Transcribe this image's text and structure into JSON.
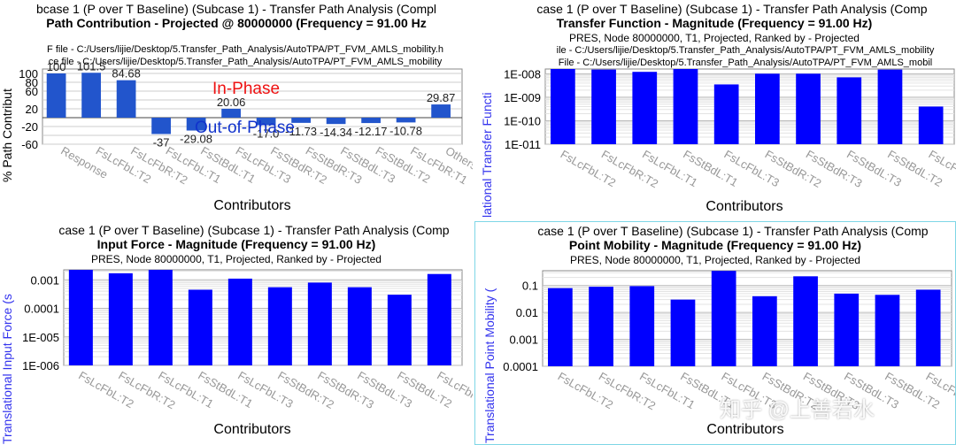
{
  "colors": {
    "bar_main": "#0000ff",
    "bar_contrib": "#2255cc",
    "axis_label_blue": "#3333ee",
    "active_border": "#7ed6e6",
    "in_phase": "#ee1111",
    "out_phase": "#1133cc"
  },
  "common": {
    "xlabel": "Contributors"
  },
  "panels": [
    {
      "subcase": "bcase 1 (P over T Baseline) (Subcase 1)  -  Transfer Path Analysis (Compl",
      "title": "Path Contribution  -  Projected @ 80000000 (Frequency = 91.00 Hz",
      "info": "",
      "path1": "F file - C:/Users/lijie/Desktop/5.Transfer_Path_Analysis/AutoTPA/PT_FVM_AMLS_mobility.h",
      "path2": "ce file - C:/Users/lijie/Desktop/5.Transfer_Path_Analysis/AutoTPA/PT_FVM_AMLS_mobility",
      "ylabel": "% Path Contribut",
      "in_phase": "In-Phase",
      "out_of_phase": "Out-of-Phase"
    },
    {
      "subcase": "case 1 (P over T Baseline) (Subcase 1)  -  Transfer Path Analysis (Comp",
      "title": "Transfer Function - Magnitude (Frequency = 91.00 Hz)",
      "info": "PRES, Node 80000000, T1, Projected, Ranked by - Projected",
      "path1": "ile - C:/Users/lijie/Desktop/5.Transfer_Path_Analysis/AutoTPA/PT_FVM_AMLS_mobility",
      "path2": "File - C:/Users/lijie/Desktop/5.Transfer_Path_Analysis/AutoTPA/PT_FVM_AMLS_mobil",
      "ylabel": "lational Transfer Functi"
    },
    {
      "subcase": "case 1 (P over T Baseline) (Subcase 1)  -  Transfer Path Analysis (Comp",
      "title": "Input Force - Magnitude (Frequency = 91.00 Hz)",
      "info": "PRES, Node 80000000, T1, Projected, Ranked by - Projected",
      "ylabel": "Translational Input Force (s"
    },
    {
      "subcase": "case 1 (P over T Baseline) (Subcase 1)  -  Transfer Path Analysis (Comp",
      "title": "Point Mobility - Magnitude (Frequency = 91.00 Hz)",
      "info": "PRES, Node 80000000, T1, Projected, Ranked by - Projected",
      "ylabel": "Translational Point Mobility ("
    }
  ],
  "watermark": "知乎 @上善若水",
  "chart_data": [
    {
      "type": "bar",
      "title": "Path Contribution  -  Projected @ 80000000 (Frequency = 91.00 Hz",
      "xlabel": "Contributors",
      "ylabel": "% Path Contribut",
      "categories": [
        "Response",
        "FsLcFbL:T2",
        "FsLcFbR:T2",
        "FsLcFbL:T1",
        "FsStBdL:T1",
        "FsLcFbL:T3",
        "FsStBdR:T2",
        "FsStBdR:T3",
        "FsStBdL:T3",
        "FsStBdL:T2",
        "FsLcFbR:T1",
        "Others"
      ],
      "values": [
        100,
        101.5,
        84.68,
        -37,
        -29.08,
        20.06,
        -17.0,
        -11.73,
        -14.34,
        -12.17,
        -10.78,
        29.87
      ],
      "value_labels": [
        "100",
        "101.5",
        "84.68",
        "-37",
        "-29.08",
        "20.06",
        "-17.0",
        "-11.73",
        "-14.34",
        "-12.17",
        "-10.78",
        "29.87"
      ],
      "yticks": [
        100,
        80,
        60,
        20,
        -20,
        -60
      ],
      "ylim": [
        -60,
        110
      ],
      "grid": true
    },
    {
      "type": "bar",
      "title": "Transfer Function - Magnitude (Frequency = 91.00 Hz)",
      "xlabel": "Contributors",
      "ylabel": "lational Transfer Functi",
      "log": true,
      "categories": [
        "FsLcFbL:T2",
        "FsLcFbR:T2",
        "FsLcFbL:T1",
        "FsStBdL:T1",
        "FsLcFbL:T3",
        "FsStBdR:T2",
        "FsStBdR:T3",
        "FsStBdL:T3",
        "FsStBdL:T2",
        "FsLcFbR:T1"
      ],
      "values": [
        2e-08,
        1.5e-08,
        1.2e-08,
        2e-08,
        3.5e-09,
        1e-08,
        1e-08,
        7e-09,
        1.5e-08,
        4e-10
      ],
      "yticks": [
        "1E-008",
        "1E-009",
        "1E-010",
        "1E-011"
      ],
      "ylim_exp": [
        -11,
        -7.8
      ],
      "grid": true
    },
    {
      "type": "bar",
      "title": "Input Force - Magnitude (Frequency = 91.00 Hz)",
      "xlabel": "Contributors",
      "ylabel": "Translational Input Force (s",
      "log": true,
      "categories": [
        "FsLcFbL:T2",
        "FsLcFbR:T2",
        "FsLcFbL:T1",
        "FsStBdL:T1",
        "FsLcFbL:T3",
        "FsStBdR:T2",
        "FsStBdR:T3",
        "FsStBdL:T3",
        "FsStBdL:T2",
        "FsLcFbR:T1"
      ],
      "values": [
        0.003,
        0.0017,
        0.003,
        0.00045,
        0.0011,
        0.00055,
        0.0008,
        0.00055,
        0.0003,
        0.0016
      ],
      "yticks": [
        "0.001",
        "0.0001",
        "1E-005",
        "1E-006"
      ],
      "ylim_exp": [
        -6,
        -2.65
      ],
      "grid": true
    },
    {
      "type": "bar",
      "title": "Point Mobility - Magnitude (Frequency = 91.00 Hz)",
      "xlabel": "Contributors",
      "ylabel": "Translational Point Mobility (",
      "log": true,
      "categories": [
        "FsLcFbL:T2",
        "FsLcFbR:T2",
        "FsLcFbL:T1",
        "FsStBdL:T1",
        "FsLcFbL:T3",
        "FsStBdR:T2",
        "FsStBdR:T3",
        "FsStBdL:T3",
        "FsStBdL:T2",
        "FsLcFbR:T1"
      ],
      "values": [
        0.08,
        0.09,
        0.095,
        0.03,
        0.35,
        0.04,
        0.22,
        0.05,
        0.045,
        0.07
      ],
      "yticks": [
        "0.1",
        "0.01",
        "0.001",
        "0.0001"
      ],
      "ylim_exp": [
        -4,
        -0.45
      ],
      "grid": true
    }
  ]
}
